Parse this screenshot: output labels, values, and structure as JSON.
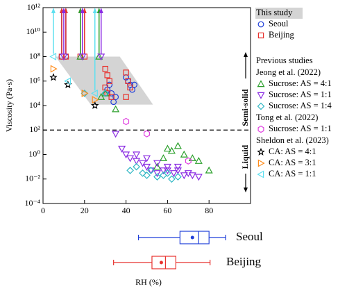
{
  "chart_data": {
    "type": "scatter",
    "y_label": "Viscosity (Pa·s)",
    "x_label": "RH (%)",
    "xlim": [
      0,
      100
    ],
    "xticks": [
      0,
      20,
      40,
      60,
      80
    ],
    "ylim": [
      0.0001,
      1000000000000
    ],
    "y_log": true,
    "yticks": [
      {
        "value": 0.0001,
        "label": "10⁻⁴"
      },
      {
        "value": 0.01,
        "label": "10⁻²"
      },
      {
        "value": 1,
        "label": "10⁰"
      },
      {
        "value": 100,
        "label": "10²"
      },
      {
        "value": 10000,
        "label": "10⁴"
      },
      {
        "value": 1000000,
        "label": "10⁶"
      },
      {
        "value": 100000000,
        "label": "10⁸"
      },
      {
        "value": 10000000000,
        "label": "10¹⁰"
      },
      {
        "value": 1000000000000,
        "label": "10¹²"
      }
    ],
    "threshold": 100,
    "annotations": [
      "Semi-solid",
      "Liquid"
    ],
    "shaded_region": {
      "x": [
        6,
        37,
        53,
        23
      ],
      "y": [
        100000000,
        100000000,
        12000,
        12000
      ],
      "color": "#d4d4d4"
    },
    "legend_sections": [
      {
        "title": "This study",
        "series": [
          0,
          1
        ]
      },
      {
        "title": "Previous studies",
        "series": []
      },
      {
        "title": "Jeong et al. (2022)",
        "series": [
          2,
          3,
          4
        ]
      },
      {
        "title": "Tong et al. (2022)",
        "series": [
          5
        ]
      },
      {
        "title": "Sheldon et al. (2023)",
        "series": [
          6,
          7,
          8
        ]
      }
    ],
    "series": [
      {
        "name": "Seoul",
        "marker": "circle",
        "color": "#1f3fd9",
        "x": [
          9,
          11,
          31,
          32,
          33,
          34,
          35,
          40,
          41,
          42,
          43,
          44
        ],
        "values": [
          100000000,
          100000000,
          200000,
          500000,
          100000,
          20000,
          50000,
          2000000,
          1000000,
          500000,
          200000,
          500000
        ],
        "arrow_up": [
          0,
          1
        ]
      },
      {
        "name": "Beijing",
        "marker": "square",
        "color": "#e8322e",
        "x": [
          9,
          11,
          18,
          20,
          30,
          31,
          32,
          30,
          31,
          33,
          40,
          41,
          42,
          40
        ],
        "values": [
          100000000,
          100000000,
          100000000,
          100000000,
          10000000,
          3000000,
          1000000,
          300000,
          100000,
          50000,
          5000000,
          1000000,
          300000,
          50000
        ],
        "arrow_up": [
          0,
          1,
          2,
          3
        ]
      },
      {
        "name": "Sucrose: AS = 4:1",
        "marker": "tri-up",
        "color": "#2ca02c",
        "x": [
          18,
          27,
          28,
          30,
          35,
          55,
          58,
          60,
          62,
          65,
          68,
          72,
          75,
          80
        ],
        "values": [
          100000000,
          100000000,
          50000,
          100000,
          5000,
          0.1,
          0.5,
          3,
          2,
          5,
          1,
          0.5,
          0.3,
          0.05
        ],
        "arrow_up": [
          0,
          1
        ]
      },
      {
        "name": "Sucrose: AS = 1:1",
        "marker": "tri-down",
        "color": "#8a2be2",
        "x": [
          10,
          19,
          28,
          35,
          38,
          40,
          42,
          45,
          45,
          48,
          50,
          50,
          52,
          55,
          55,
          58,
          60,
          60,
          63,
          65,
          65,
          68,
          70,
          72,
          75
        ],
        "values": [
          100000000,
          100000000,
          100000000,
          50,
          3,
          1,
          0.5,
          0.3,
          1,
          0.2,
          0.1,
          0.5,
          0.05,
          0.03,
          0.2,
          0.05,
          0.1,
          0.05,
          0.03,
          0.05,
          0.1,
          0.02,
          0.03,
          0.02,
          0.015
        ],
        "arrow_up": [
          0,
          1,
          2
        ]
      },
      {
        "name": "Sucrose: AS = 1:4",
        "marker": "diamond",
        "color": "#2fb7c4",
        "x": [
          20,
          30,
          42,
          45,
          48,
          50,
          52,
          55,
          58,
          60,
          62,
          65
        ],
        "values": [
          100000,
          100000,
          0.05,
          0.1,
          0.03,
          0.02,
          0.05,
          0.015,
          0.02,
          0.03,
          0.01,
          0.015
        ],
        "arrow_up": []
      },
      {
        "name": "Sucrose: AS = 1:1",
        "marker": "hexagon",
        "color": "#e040e0",
        "x": [
          40,
          50,
          70
        ],
        "values": [
          500,
          50,
          0.3
        ],
        "arrow_up": []
      },
      {
        "name": "CA: AS = 4:1",
        "marker": "star",
        "color": "#000000",
        "x": [
          5,
          12,
          25
        ],
        "values": [
          2000000,
          500000,
          10000
        ],
        "arrow_up": []
      },
      {
        "name": "CA: AS = 3:1",
        "marker": "tri-right",
        "color": "#ff8c1a",
        "x": [
          5,
          20,
          25
        ],
        "values": [
          10000000,
          100000,
          30000
        ],
        "arrow_up": []
      },
      {
        "name": "CA: AS = 1:1",
        "marker": "tri-left",
        "color": "#5fe0f0",
        "x": [
          5,
          12,
          25
        ],
        "values": [
          100000000,
          1000000,
          100000
        ],
        "arrow_up": [
          0,
          2
        ]
      }
    ],
    "boxplots": [
      {
        "name": "Seoul",
        "color": "#1f3fd9",
        "whisker_low": 46,
        "q1": 66,
        "median": 75,
        "q3": 80,
        "whisker_high": 88,
        "mean": 72
      },
      {
        "name": "Beijing",
        "color": "#e8322e",
        "whisker_low": 34,
        "q1": 52.5,
        "median": 59,
        "q3": 64,
        "whisker_high": 80.5,
        "mean": 57
      }
    ]
  }
}
